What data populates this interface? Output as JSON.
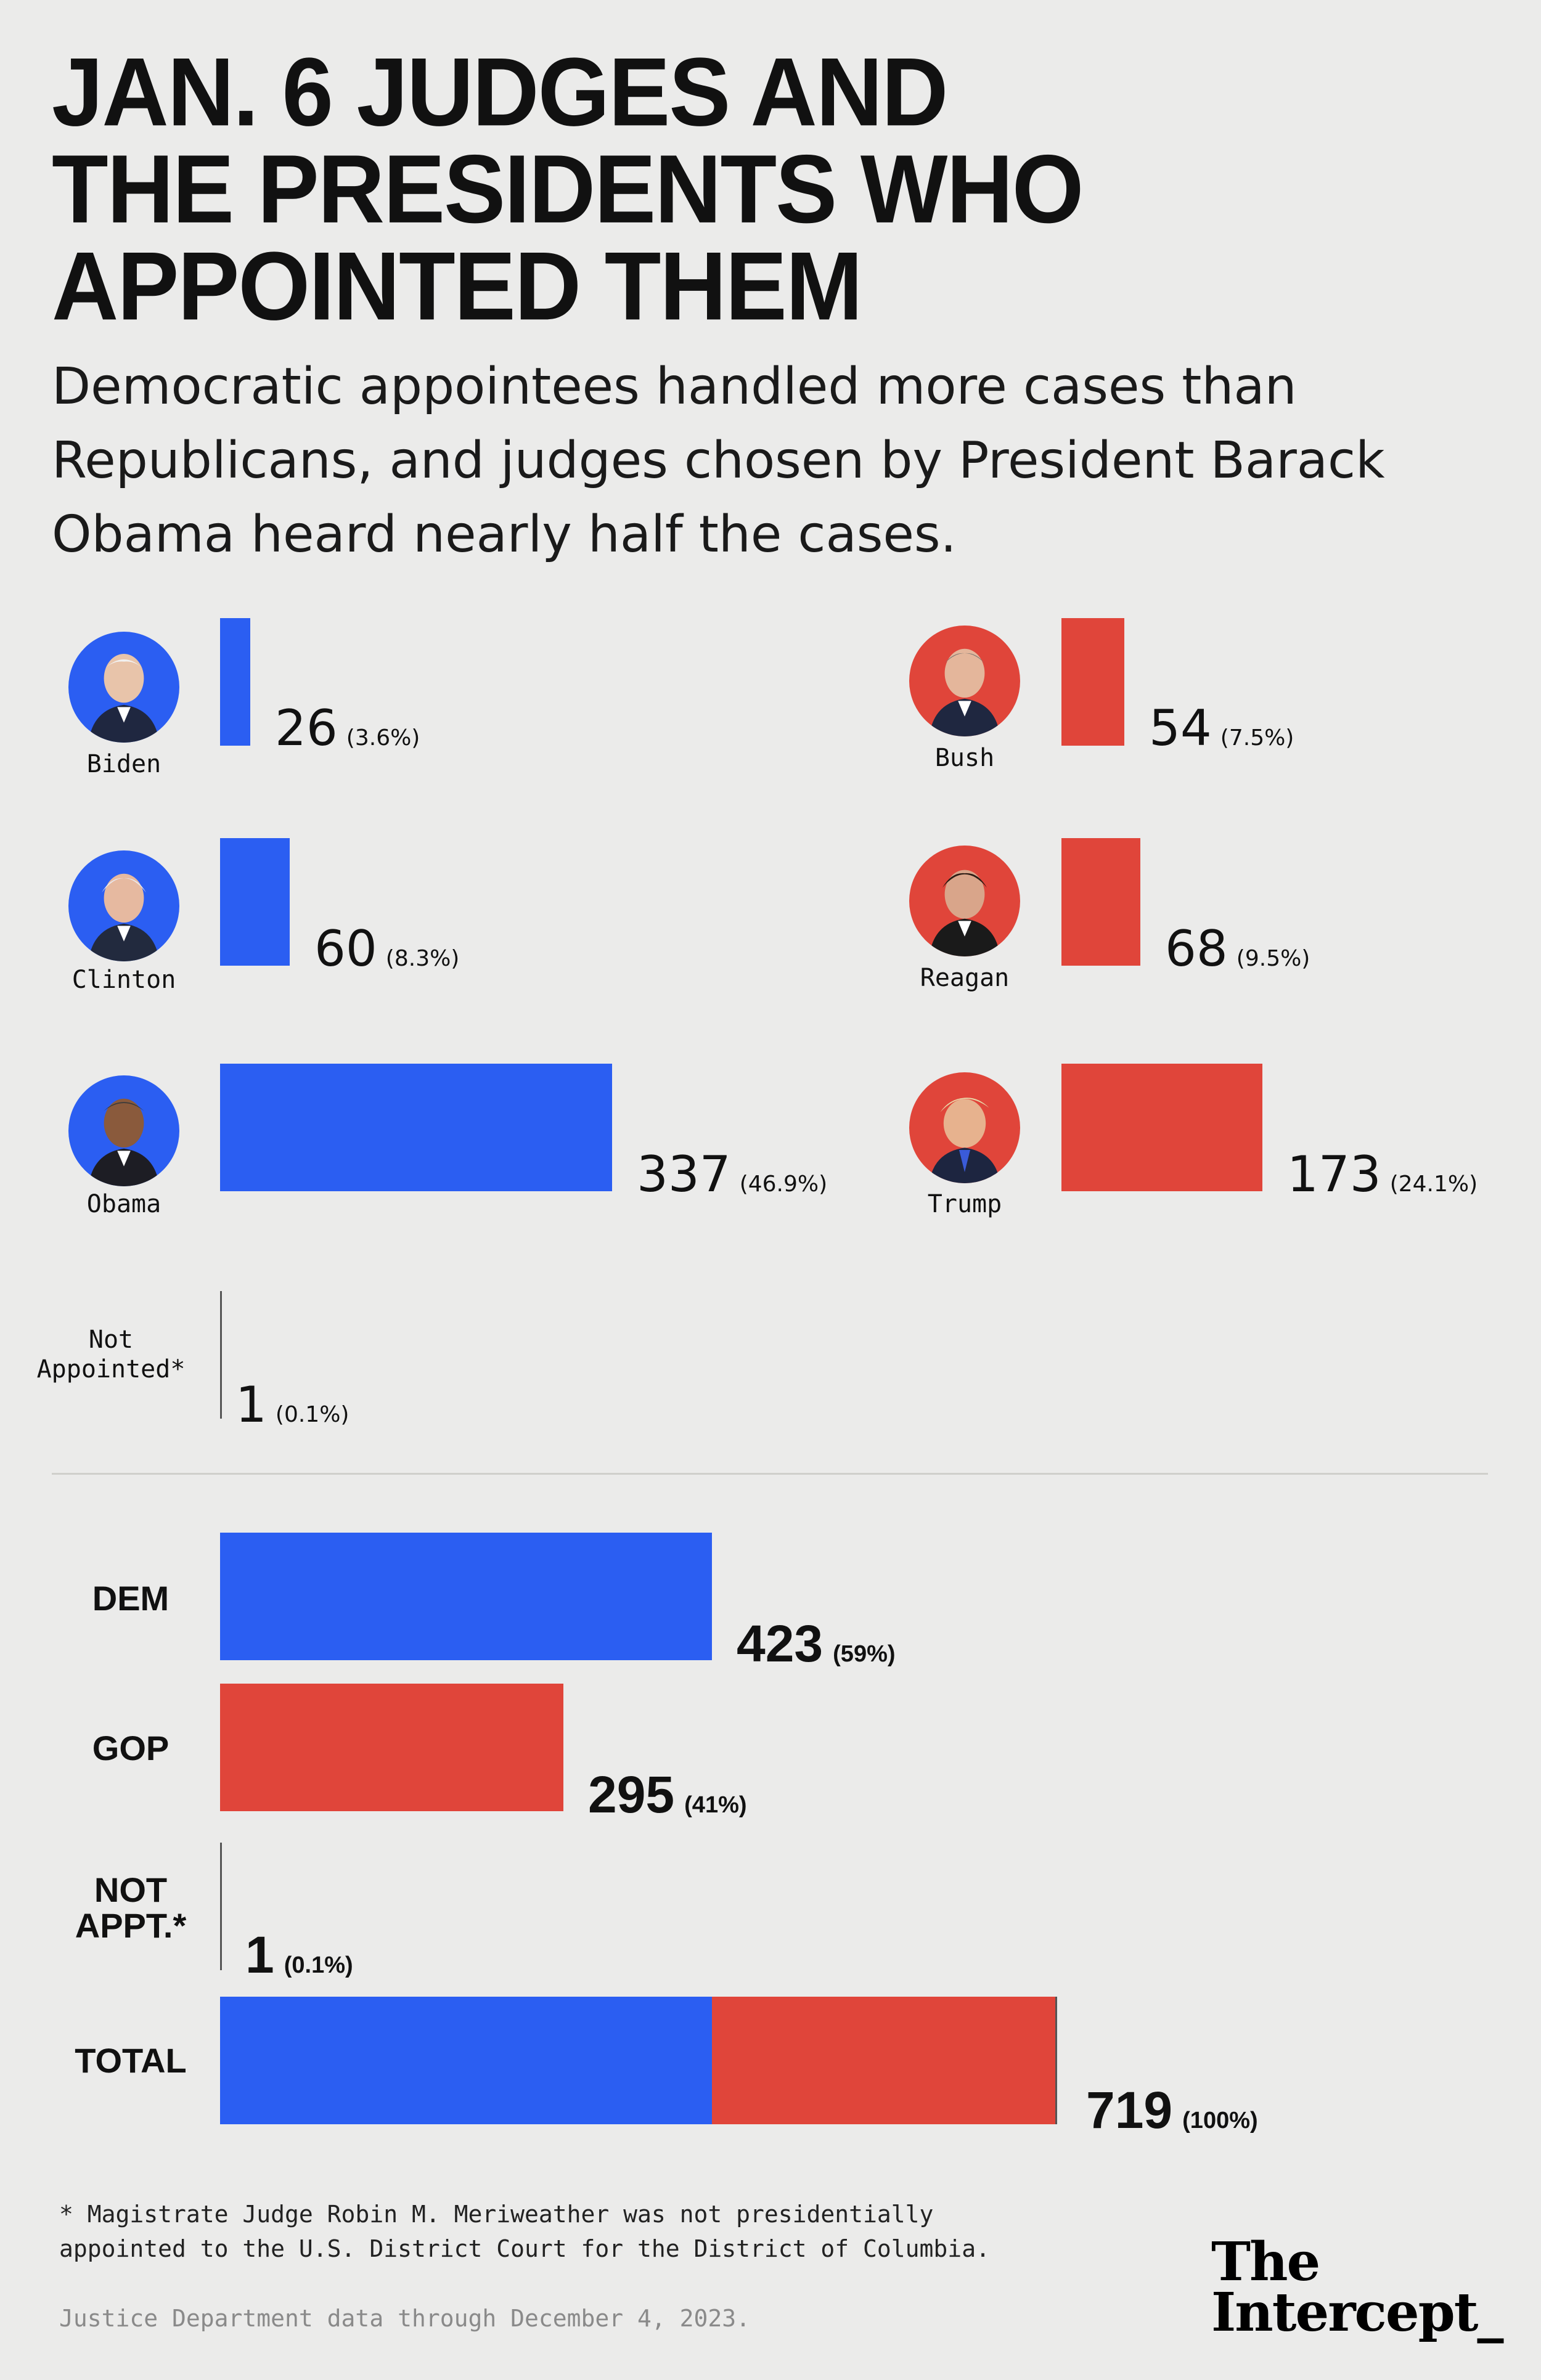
{
  "title_lines": [
    "JAN. 6 JUDGES AND",
    "THE PRESIDENTS WHO",
    "APPOINTED THEM"
  ],
  "subtitle_lines": [
    "Democratic appointees handled more cases than",
    "Republicans, and judges chosen by President Barack",
    "Obama heard nearly half the cases."
  ],
  "colors": {
    "dem": "#2b5ef2",
    "gop": "#e0453a",
    "background": "#ebebea",
    "text": "#111111"
  },
  "chart_data": [
    {
      "type": "bar",
      "orientation": "horizontal",
      "title": "",
      "series": [
        {
          "name": "",
          "party": "dem",
          "categories": [
            "Biden",
            "Clinton",
            "Obama",
            "Not Appointed*"
          ],
          "values": [
            26,
            60,
            337,
            1
          ],
          "percent_labels": [
            "(3.6%)",
            "(8.3%)",
            "(46.9%)",
            "(0.1%)"
          ]
        },
        {
          "name": "",
          "party": "gop",
          "categories": [
            "Bush",
            "Reagan",
            "Trump"
          ],
          "values": [
            54,
            68,
            173
          ],
          "percent_labels": [
            "(7.5%)",
            "(9.5%)",
            "(24.1%)"
          ]
        }
      ],
      "people": [
        {
          "name": "Biden",
          "value": "26",
          "pct": "(3.6%)",
          "party": "dem",
          "icon": "biden-portrait"
        },
        {
          "name": "Clinton",
          "value": "60",
          "pct": "(8.3%)",
          "party": "dem",
          "icon": "clinton-portrait"
        },
        {
          "name": "Obama",
          "value": "337",
          "pct": "(46.9%)",
          "party": "dem",
          "icon": "obama-portrait"
        },
        {
          "name": "Bush",
          "value": "54",
          "pct": "(7.5%)",
          "party": "gop",
          "icon": "bush-portrait"
        },
        {
          "name": "Reagan",
          "value": "68",
          "pct": "(9.5%)",
          "party": "gop",
          "icon": "reagan-portrait"
        },
        {
          "name": "Trump",
          "value": "173",
          "pct": "(24.1%)",
          "party": "gop",
          "icon": "trump-portrait"
        }
      ],
      "not_appointed": {
        "label_lines": [
          "Not",
          "Appointed*"
        ],
        "value": "1",
        "pct": "(0.1%)"
      }
    },
    {
      "type": "bar",
      "orientation": "horizontal",
      "title": "",
      "categories": [
        "DEM",
        "GOP",
        "NOT APPT.*",
        "TOTAL"
      ],
      "rows": [
        {
          "label_lines": [
            "DEM"
          ],
          "value": "423",
          "pct": "(59%)",
          "segments": [
            {
              "party": "dem",
              "value": 423
            }
          ]
        },
        {
          "label_lines": [
            "GOP"
          ],
          "value": "295",
          "pct": "(41%)",
          "segments": [
            {
              "party": "gop",
              "value": 295
            }
          ]
        },
        {
          "label_lines": [
            "NOT",
            "APPT.*"
          ],
          "value": "1",
          "pct": "(0.1%)",
          "segments": []
        },
        {
          "label_lines": [
            "TOTAL"
          ],
          "value": "719",
          "pct": "(100%)",
          "segments": [
            {
              "party": "dem",
              "value": 423
            },
            {
              "party": "gop",
              "value": 295
            },
            {
              "party": "none",
              "value": 1
            }
          ]
        }
      ]
    }
  ],
  "footnote_lines": [
    "* Magistrate Judge Robin M. Meriweather was not presidentially",
    "appointed to the U.S. District Court for the District of Columbia."
  ],
  "source": "Justice Department data through December 4, 2023.",
  "logo_lines": [
    "The",
    "Intercept_"
  ]
}
